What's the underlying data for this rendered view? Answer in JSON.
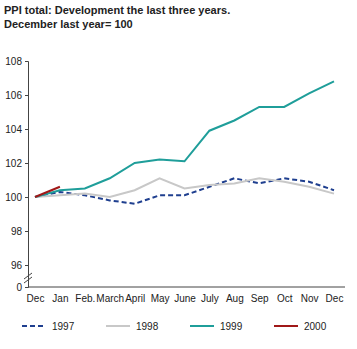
{
  "chart_data": {
    "type": "line",
    "title": "PPI total: Development the last three years.",
    "subtitle": "December last year= 100",
    "categories": [
      "Dec",
      "Jan",
      "Feb.",
      "March",
      "April",
      "May",
      "June",
      "July",
      "Aug",
      "Sep",
      "Oct",
      "Nov",
      "Dec"
    ],
    "series": [
      {
        "name": "1997",
        "color": "#1f3f8f",
        "line_style": "dashed",
        "values": [
          100,
          100.3,
          100.1,
          99.8,
          99.6,
          100.1,
          100.1,
          100.6,
          101.1,
          100.8,
          101.1,
          100.9,
          100.4
        ]
      },
      {
        "name": "1998",
        "color": "#c8c8c8",
        "line_style": "solid",
        "values": [
          100,
          100.1,
          100.2,
          100.0,
          100.4,
          101.1,
          100.5,
          100.7,
          100.8,
          101.1,
          100.9,
          100.6,
          100.2
        ]
      },
      {
        "name": "1999",
        "color": "#1f9e9a",
        "line_style": "solid",
        "values": [
          100,
          100.4,
          100.5,
          101.1,
          102.0,
          102.2,
          102.1,
          103.9,
          104.5,
          105.3,
          105.3,
          106.1,
          106.8
        ]
      },
      {
        "name": "2000",
        "color": "#a01818",
        "line_style": "solid",
        "values": [
          100,
          100.6,
          null,
          null,
          null,
          null,
          null,
          null,
          null,
          null,
          null,
          null,
          null
        ]
      }
    ],
    "ylim": [
      0,
      108
    ],
    "yticks": [
      0,
      96,
      98,
      100,
      102,
      104,
      106,
      108
    ],
    "grid": false,
    "legend": "bottom"
  }
}
